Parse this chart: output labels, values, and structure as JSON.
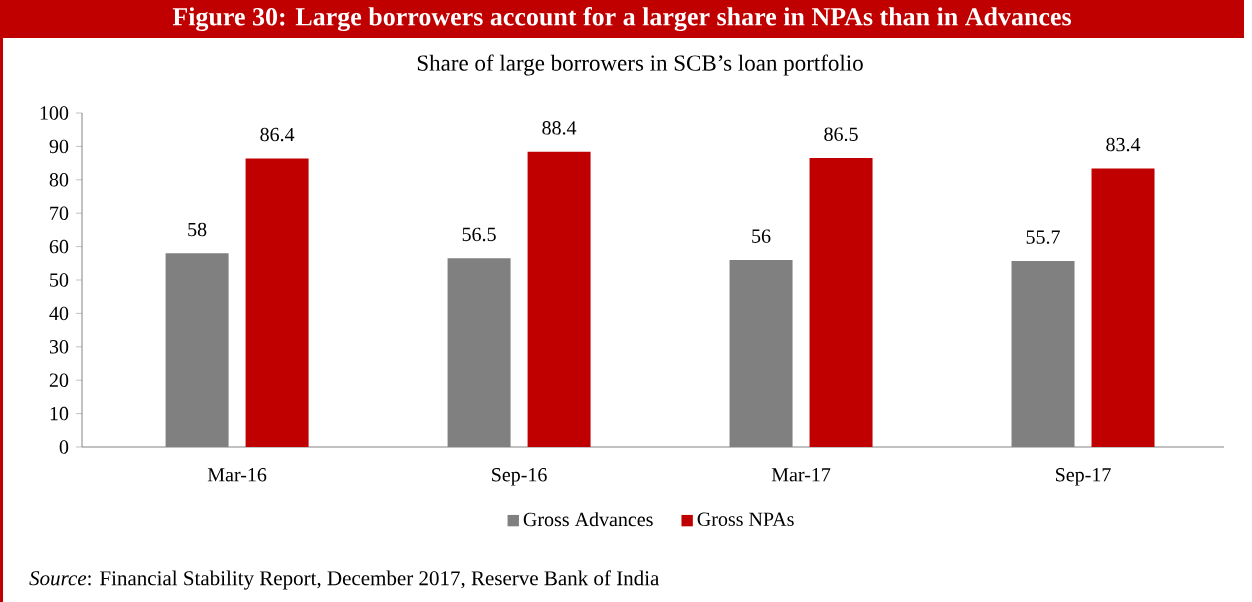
{
  "chart_data": {
    "type": "bar",
    "title": "Figure 30: Large borrowers account for a larger share in NPAs than in Advances",
    "subtitle": "Share of large borrowers in SCB’s loan portfolio",
    "categories": [
      "Mar-16",
      "Sep-16",
      "Mar-17",
      "Sep-17"
    ],
    "series": [
      {
        "name": "Gross Advances",
        "color": "#808080",
        "values": [
          58,
          56.5,
          56,
          55.7
        ]
      },
      {
        "name": "Gross NPAs",
        "color": "#c00000",
        "values": [
          86.4,
          88.4,
          86.5,
          83.4
        ]
      }
    ],
    "ylim": [
      0,
      100
    ],
    "yticks": [
      0,
      10,
      20,
      30,
      40,
      50,
      60,
      70,
      80,
      90,
      100
    ],
    "data_labels": true,
    "legend": "bottom",
    "grid": false,
    "annotations": [
      "*Source*: Financial Stability Report, December 2017, Reserve Bank of India"
    ]
  }
}
